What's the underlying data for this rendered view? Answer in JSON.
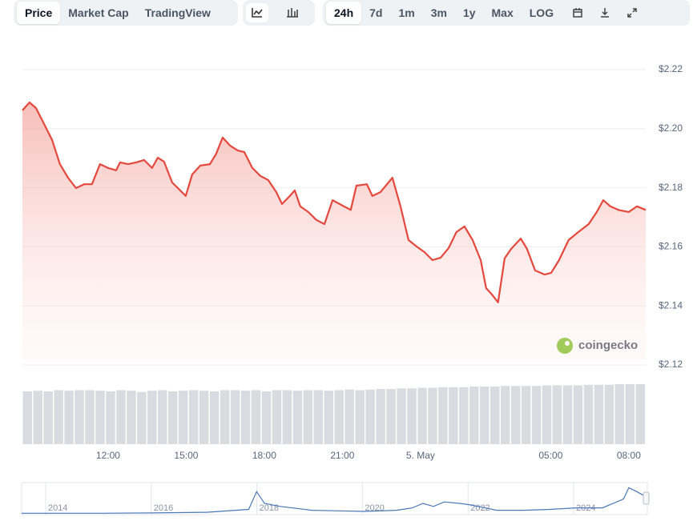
{
  "toolbar": {
    "views": [
      "Price",
      "Market Cap",
      "TradingView"
    ],
    "ranges": [
      "24h",
      "7d",
      "1m",
      "3m",
      "1y",
      "Max",
      "LOG"
    ],
    "active_view": "Price",
    "active_range": "24h"
  },
  "watermark": "coingecko",
  "chart_data": {
    "type": "line",
    "color": "#e5483d",
    "x": [
      8.71,
      8.98,
      9.23,
      9.54,
      9.85,
      10.15,
      10.46,
      10.77,
      11.08,
      11.38,
      11.69,
      12,
      12.31,
      12.46,
      12.77,
      13.08,
      13.38,
      13.69,
      13.91,
      14.15,
      14.46,
      14.77,
      14.98,
      15.23,
      15.54,
      15.91,
      16.15,
      16.4,
      16.68,
      16.98,
      17.23,
      17.54,
      17.85,
      18.15,
      18.46,
      18.68,
      18.98,
      19.17,
      19.38,
      19.69,
      20.0,
      20.31,
      20.62,
      21.02,
      21.32,
      21.54,
      21.94,
      22.15,
      22.46,
      22.77,
      22.92,
      23.23,
      23.54,
      23.85,
      24.15,
      24.46,
      24.77,
      25.08,
      25.38,
      25.69,
      26.0,
      26.31,
      26.52,
      26.74,
      26.98,
      27.23,
      27.48,
      27.85,
      28.09,
      28.4,
      28.77,
      29.02,
      29.32,
      29.69,
      30.06,
      30.46,
      30.77,
      31.02,
      31.29,
      31.6,
      32.0,
      32.31,
      32.65
    ],
    "values": [
      2.2062,
      2.2089,
      2.207,
      2.2016,
      2.1962,
      2.188,
      2.1834,
      2.1799,
      2.1812,
      2.1812,
      2.188,
      2.1867,
      2.1859,
      2.1886,
      2.188,
      2.1886,
      2.1894,
      2.1867,
      2.1902,
      2.1888,
      2.1818,
      2.1791,
      2.1772,
      2.1845,
      2.1875,
      2.188,
      2.1915,
      2.197,
      2.1943,
      2.1926,
      2.1921,
      2.1867,
      2.184,
      2.1826,
      2.1785,
      2.1745,
      2.1772,
      2.1791,
      2.1737,
      2.1718,
      2.1691,
      2.1677,
      2.1758,
      2.1739,
      2.1725,
      2.1807,
      2.1812,
      2.1772,
      2.1785,
      2.1818,
      2.1834,
      2.1737,
      2.1623,
      2.1601,
      2.1582,
      2.1555,
      2.1563,
      2.1596,
      2.165,
      2.1669,
      2.1623,
      2.1555,
      2.146,
      2.1439,
      2.1412,
      2.1561,
      2.1593,
      2.1628,
      2.1593,
      2.152,
      2.1506,
      2.1512,
      2.1555,
      2.1623,
      2.165,
      2.1677,
      2.1718,
      2.1758,
      2.1737,
      2.1725,
      2.1718,
      2.1737,
      2.1725
    ],
    "xlim": [
      8.71,
      32.65
    ],
    "xticks": [
      {
        "value": 12,
        "label": "12:00"
      },
      {
        "value": 15,
        "label": "15:00"
      },
      {
        "value": 18,
        "label": "18:00"
      },
      {
        "value": 21,
        "label": "21:00"
      },
      {
        "value": 24,
        "label": "5. May"
      },
      {
        "value": 29,
        "label": "05:00"
      },
      {
        "value": 32,
        "label": "08:00"
      }
    ],
    "ylim": [
      2.12,
      2.22
    ],
    "yticks": [
      {
        "value": 2.12,
        "label": "$2.12"
      },
      {
        "value": 2.14,
        "label": "$2.14"
      },
      {
        "value": 2.16,
        "label": "$2.16"
      },
      {
        "value": 2.18,
        "label": "$2.18"
      },
      {
        "value": 2.2,
        "label": "$2.20"
      },
      {
        "value": 2.22,
        "label": "$2.22"
      }
    ],
    "grid": true,
    "volume": {
      "color": "#d9dbe0",
      "ylim": [
        0,
        1
      ],
      "values": [
        0.88,
        0.89,
        0.88,
        0.9,
        0.89,
        0.9,
        0.9,
        0.89,
        0.88,
        0.9,
        0.89,
        0.87,
        0.89,
        0.9,
        0.88,
        0.89,
        0.9,
        0.89,
        0.88,
        0.9,
        0.9,
        0.89,
        0.9,
        0.88,
        0.9,
        0.9,
        0.89,
        0.9,
        0.9,
        0.89,
        0.9,
        0.91,
        0.9,
        0.91,
        0.92,
        0.92,
        0.93,
        0.93,
        0.94,
        0.94,
        0.95,
        0.95,
        0.95,
        0.96,
        0.96,
        0.96,
        0.97,
        0.97,
        0.97,
        0.97,
        0.98,
        0.98,
        0.98,
        0.98,
        0.99,
        0.99,
        0.99,
        1.0,
        1.0,
        1.0
      ]
    },
    "navigator": {
      "color": "#4a78b8",
      "x": [
        2013.5,
        2014,
        2015,
        2016,
        2017,
        2017.8,
        2017.95,
        2018.1,
        2018.4,
        2019,
        2019.5,
        2020,
        2020.6,
        2020.9,
        2021.1,
        2021.3,
        2021.5,
        2021.8,
        2022,
        2022.5,
        2023,
        2023.5,
        2024,
        2024.5,
        2024.9,
        2025.0,
        2025.15,
        2025.3
      ],
      "values": [
        0.02,
        0.02,
        0.02,
        0.03,
        0.05,
        0.15,
        0.75,
        0.35,
        0.25,
        0.12,
        0.1,
        0.08,
        0.12,
        0.2,
        0.35,
        0.25,
        0.4,
        0.35,
        0.3,
        0.12,
        0.12,
        0.15,
        0.2,
        0.2,
        0.5,
        0.88,
        0.75,
        0.6
      ],
      "xlim": [
        2013.5,
        2025.35
      ],
      "ylim": [
        0,
        1
      ],
      "xticks": [
        2014,
        2016,
        2018,
        2020,
        2022,
        2024
      ]
    }
  }
}
